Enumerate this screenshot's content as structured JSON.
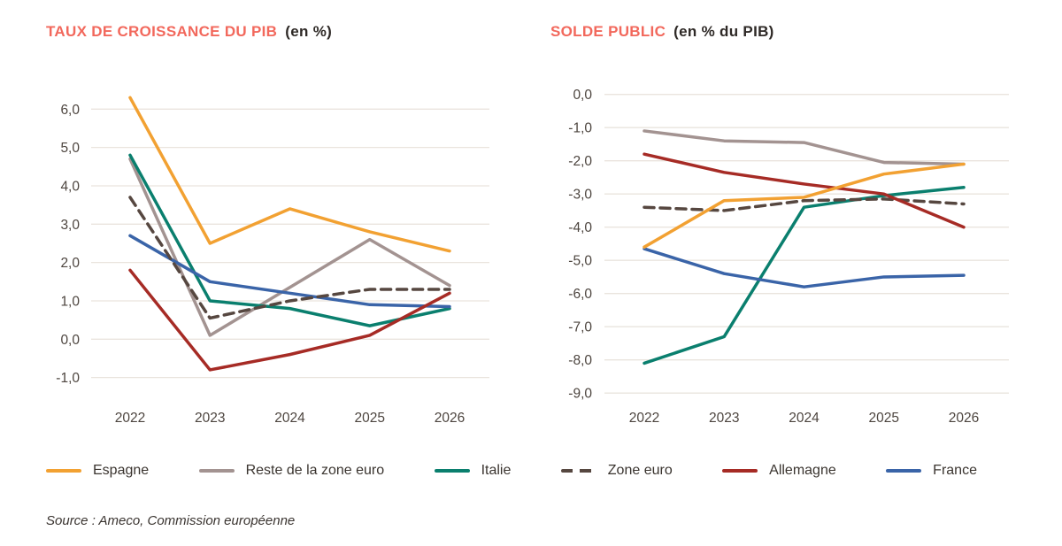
{
  "colors": {
    "title_accent": "#F2685C",
    "title_dark": "#2E2926",
    "axis_text": "#4D453F",
    "gridline": "#EAE4DE",
    "legend_text": "#3A342F"
  },
  "chart_data": [
    {
      "type": "line",
      "title_main": "TAUX DE CROISSANCE DU PIB",
      "title_unit": "(en %)",
      "categories": [
        "2022",
        "2023",
        "2024",
        "2025",
        "2026"
      ],
      "ylim": [
        -1.0,
        6.0
      ],
      "ytick_step": 1.0,
      "ytick_labels": [
        "6,0",
        "5,0",
        "4,0",
        "3,0",
        "2,0",
        "1,0",
        "0,0",
        "-1,0"
      ],
      "grid": true,
      "legend_position": "bottom",
      "series": [
        {
          "name": "Espagne",
          "color": "#F2A132",
          "style": "solid",
          "values": [
            6.3,
            2.5,
            3.4,
            2.8,
            2.3
          ]
        },
        {
          "name": "Reste de la zone euro",
          "color": "#A39391",
          "style": "solid",
          "values": [
            4.7,
            0.1,
            1.35,
            2.6,
            1.4
          ]
        },
        {
          "name": "Italie",
          "color": "#0A7F6E",
          "style": "solid",
          "values": [
            4.8,
            1.0,
            0.8,
            0.35,
            0.8
          ]
        },
        {
          "name": "Zone euro",
          "color": "#564740",
          "style": "dashed",
          "values": [
            3.7,
            0.55,
            1.0,
            1.3,
            1.3
          ]
        },
        {
          "name": "Allemagne",
          "color": "#A62B25",
          "style": "solid",
          "values": [
            1.8,
            -0.8,
            -0.4,
            0.1,
            1.2
          ]
        },
        {
          "name": "France",
          "color": "#3A64A8",
          "style": "solid",
          "values": [
            2.7,
            1.5,
            1.2,
            0.9,
            0.85
          ]
        }
      ]
    },
    {
      "type": "line",
      "title_main": "SOLDE PUBLIC",
      "title_unit": "(en % du PIB)",
      "categories": [
        "2022",
        "2023",
        "2024",
        "2025",
        "2026"
      ],
      "ylim": [
        -9.0,
        0.0
      ],
      "ytick_step": 1.0,
      "ytick_labels": [
        "0,0",
        "-1,0",
        "-2,0",
        "-3,0",
        "-4,0",
        "-5,0",
        "-6,0",
        "-7,0",
        "-8,0",
        "-9,0"
      ],
      "grid": true,
      "legend_position": "bottom",
      "series": [
        {
          "name": "Espagne",
          "color": "#F2A132",
          "style": "solid",
          "values": [
            -4.6,
            -3.2,
            -3.1,
            -2.4,
            -2.1
          ]
        },
        {
          "name": "Reste de la zone euro",
          "color": "#A39391",
          "style": "solid",
          "values": [
            -1.1,
            -1.4,
            -1.45,
            -2.05,
            -2.1
          ]
        },
        {
          "name": "Italie",
          "color": "#0A7F6E",
          "style": "solid",
          "values": [
            -8.1,
            -7.3,
            -3.4,
            -3.05,
            -2.8
          ]
        },
        {
          "name": "Zone euro",
          "color": "#564740",
          "style": "dashed",
          "values": [
            -3.4,
            -3.5,
            -3.2,
            -3.15,
            -3.3
          ]
        },
        {
          "name": "Allemagne",
          "color": "#A62B25",
          "style": "solid",
          "values": [
            -1.8,
            -2.35,
            -2.7,
            -3.0,
            -4.0
          ]
        },
        {
          "name": "France",
          "color": "#3A64A8",
          "style": "solid",
          "values": [
            -4.65,
            -5.4,
            -5.8,
            -5.5,
            -5.45
          ]
        }
      ]
    }
  ],
  "legend": {
    "items": [
      {
        "label": "Espagne",
        "color": "#F2A132",
        "style": "solid"
      },
      {
        "label": "Reste de la zone euro",
        "color": "#A39391",
        "style": "solid"
      },
      {
        "label": "Italie",
        "color": "#0A7F6E",
        "style": "solid"
      },
      {
        "label": "Zone euro",
        "color": "#564740",
        "style": "dashed"
      },
      {
        "label": "Allemagne",
        "color": "#A62B25",
        "style": "solid"
      },
      {
        "label": "France",
        "color": "#3A64A8",
        "style": "solid"
      }
    ]
  },
  "source": {
    "text": "Source : Ameco, Commission européenne"
  }
}
